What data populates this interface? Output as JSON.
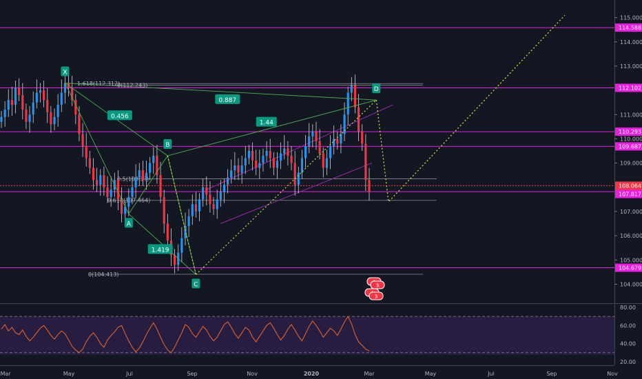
{
  "chart_data": {
    "type": "candlestick",
    "title": "",
    "x_ticks": [
      "Mar",
      "May",
      "Jul",
      "Sep",
      "Nov",
      "2020",
      "Mar",
      "May",
      "Jul",
      "Sep",
      "Nov"
    ],
    "y_ticks": [
      "115.000",
      "114.000",
      "113.000",
      "111.000",
      "110.000",
      "109.000",
      "107.000",
      "106.000",
      "105.000",
      "104.000"
    ],
    "ylim": [
      103.5,
      115.5
    ],
    "grid": false,
    "price_series": [
      110.9,
      111.2,
      111.6,
      111.4,
      112.1,
      111.8,
      111.2,
      110.7,
      111.0,
      111.5,
      111.9,
      112.0,
      111.6,
      111.1,
      110.6,
      110.9,
      111.4,
      111.9,
      112.3,
      112.1,
      111.6,
      111.0,
      110.2,
      109.7,
      109.2,
      108.8,
      108.3,
      108.1,
      108.5,
      108.0,
      107.6,
      107.9,
      108.3,
      107.5,
      106.9,
      107.2,
      107.6,
      108.0,
      108.4,
      108.7,
      108.3,
      108.6,
      109.0,
      109.3,
      108.5,
      107.6,
      106.5,
      105.8,
      105.2,
      104.8,
      105.3,
      105.9,
      106.4,
      106.8,
      107.3,
      107.0,
      107.5,
      108.0,
      107.7,
      107.3,
      107.1,
      107.5,
      107.8,
      108.1,
      108.4,
      108.7,
      108.9,
      108.6,
      108.9,
      109.2,
      109.5,
      109.1,
      108.8,
      109.0,
      109.3,
      109.5,
      109.2,
      108.8,
      109.1,
      109.4,
      109.6,
      109.3,
      109.0,
      108.1,
      108.6,
      109.2,
      109.7,
      110.1,
      110.3,
      109.9,
      109.4,
      108.8,
      109.2,
      109.7,
      110.0,
      109.8,
      110.2,
      111.0,
      111.9,
      112.2,
      111.3,
      110.3,
      109.8,
      108.3,
      107.8
    ],
    "rsi_series": [
      56,
      61,
      54,
      58,
      52,
      50,
      55,
      48,
      43,
      47,
      52,
      57,
      60,
      55,
      49,
      45,
      50,
      54,
      51,
      44,
      37,
      33,
      30,
      34,
      42,
      48,
      52,
      47,
      40,
      36,
      44,
      49,
      53,
      58,
      60,
      51,
      43,
      36,
      31,
      35,
      42,
      50,
      57,
      63,
      56,
      47,
      39,
      33,
      30,
      36,
      44,
      52,
      61,
      58,
      51,
      47,
      53,
      59,
      55,
      48,
      43,
      47,
      54,
      61,
      64,
      58,
      51,
      46,
      52,
      58,
      55,
      47,
      42,
      48,
      54,
      60,
      63,
      57,
      50,
      44,
      49,
      56,
      61,
      55,
      48,
      43,
      51,
      59,
      65,
      60,
      54,
      47,
      52,
      57,
      54,
      49,
      56,
      64,
      70,
      62,
      50,
      42,
      38,
      34,
      32
    ],
    "rsi_levels": [
      70,
      30
    ],
    "rsi_ticks": [
      "80.00",
      "60.00",
      "40.00",
      "20.00"
    ],
    "rsi_ylim": [
      20,
      80
    ],
    "price_tags": [
      {
        "label": "114.588",
        "value": 114.588,
        "color": "#e91ee0"
      },
      {
        "label": "112.102",
        "value": 112.102,
        "color": "#e91ee0"
      },
      {
        "label": "110.293",
        "value": 110.293,
        "color": "#e91ee0"
      },
      {
        "label": "109.687",
        "value": 109.687,
        "color": "#e91ee0"
      },
      {
        "label": "108.064",
        "value": 108.064,
        "color": "#f23645"
      },
      {
        "label": "107.817",
        "value": 107.817,
        "color": "#e91ee0"
      },
      {
        "label": "104.679",
        "value": 104.679,
        "color": "#e91ee0"
      }
    ],
    "harmonic_points": [
      {
        "label": "X",
        "x_index": 18,
        "value": 112.3
      },
      {
        "label": "A",
        "x_index": 36,
        "value": 106.9
      },
      {
        "label": "B",
        "x_index": 47,
        "value": 109.3
      },
      {
        "label": "C",
        "x_index": 55,
        "value": 104.4
      },
      {
        "label": "D",
        "x_index": 106,
        "value": 111.6
      }
    ],
    "ratio_labels": [
      "0.456",
      "0.887",
      "1.44",
      "1.419"
    ],
    "fib_labels": [
      "1.618(112.312)",
      "0(112.243)",
      "0.5(108.3?)",
      "0.618(107.464)",
      "0(104.413)"
    ],
    "event_badges": [
      "4",
      "3",
      "4",
      "3"
    ]
  }
}
